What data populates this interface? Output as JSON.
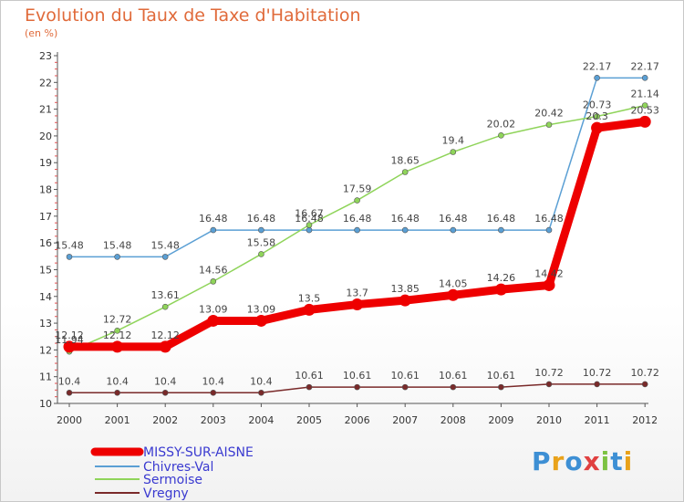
{
  "header": {
    "title": "Evolution du Taux de Taxe d'Habitation",
    "unit": "(en %)"
  },
  "logo": {
    "letters": [
      "P",
      "r",
      "o",
      "x",
      "i",
      "t",
      "i"
    ],
    "colors": [
      "#3d8fd4",
      "#e9a21a",
      "#3d8fd4",
      "#e04040",
      "#7cc242",
      "#3d8fd4",
      "#e9a21a"
    ]
  },
  "chart_data": {
    "type": "line",
    "x": [
      "2000",
      "2001",
      "2002",
      "2003",
      "2004",
      "2005",
      "2006",
      "2007",
      "2008",
      "2009",
      "2010",
      "2011",
      "2012"
    ],
    "ylim": [
      10,
      23
    ],
    "yticks": [
      "10",
      "11",
      "12",
      "13",
      "14",
      "15",
      "16",
      "17",
      "18",
      "19",
      "20",
      "21",
      "22",
      "23"
    ],
    "grid": false,
    "legend_position": "bottom-left",
    "series": [
      {
        "name": "MISSY-SUR-AISNE",
        "color": "#ee0000",
        "values": [
          12.12,
          12.12,
          12.12,
          13.09,
          13.09,
          13.5,
          13.7,
          13.85,
          14.05,
          14.26,
          14.42,
          20.3,
          20.53
        ],
        "labels": [
          "12.12",
          "12.12",
          "12.12",
          "13.09",
          "13.09",
          "13.5",
          "13.7",
          "13.85",
          "14.05",
          "14.26",
          "14.42",
          "20.3",
          "20.53"
        ]
      },
      {
        "name": "Chivres-Val",
        "color": "#5a9fd4",
        "values": [
          15.48,
          15.48,
          15.48,
          16.48,
          16.48,
          16.48,
          16.48,
          16.48,
          16.48,
          16.48,
          16.48,
          22.17,
          22.17
        ],
        "labels": [
          "15.48",
          "15.48",
          "15.48",
          "16.48",
          "16.48",
          "16.48",
          "16.48",
          "16.48",
          "16.48",
          "16.48",
          "16.48",
          "22.17",
          "22.17"
        ]
      },
      {
        "name": "Sermoise",
        "color": "#8fd45a",
        "values": [
          11.94,
          12.72,
          13.61,
          14.56,
          15.58,
          16.67,
          17.59,
          18.65,
          19.4,
          20.02,
          20.42,
          20.73,
          21.14
        ],
        "labels": [
          "11.94",
          "12.72",
          "13.61",
          "14.56",
          "15.58",
          "16.67",
          "17.59",
          "18.65",
          "19.4",
          "20.02",
          "20.42",
          "20.73",
          "21.14"
        ]
      },
      {
        "name": "Vregny",
        "color": "#7a2a2a",
        "values": [
          10.4,
          10.4,
          10.4,
          10.4,
          10.4,
          10.61,
          10.61,
          10.61,
          10.61,
          10.61,
          10.72,
          10.72,
          10.72
        ],
        "labels": [
          "10.4",
          "10.4",
          "10.4",
          "10.4",
          "10.4",
          "10.61",
          "10.61",
          "10.61",
          "10.61",
          "10.61",
          "10.72",
          "10.72",
          "10.72"
        ]
      }
    ]
  }
}
